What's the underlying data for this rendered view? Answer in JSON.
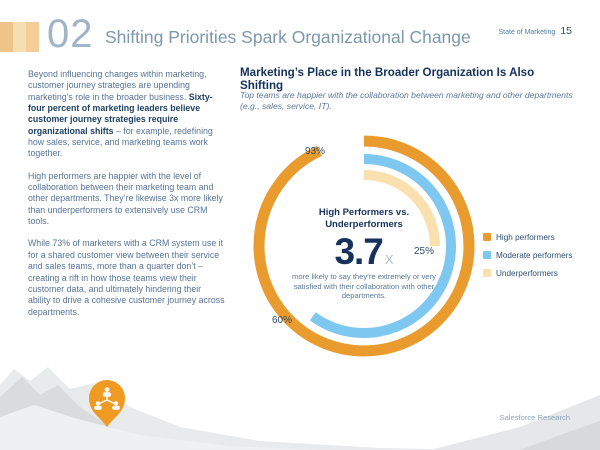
{
  "header": {
    "chapter_number": "02",
    "title": "Shifting Priorities Spark Organizational Change",
    "report_name": "State of Marketing",
    "page_number": "15"
  },
  "left_column": {
    "paragraph1_pre": "Beyond influencing changes within marketing, customer journey strategies are upending marketing’s role in the broader business. ",
    "paragraph1_bold": "Sixty-four percent of marketing leaders believe customer journey strategies require organizational shifts",
    "paragraph1_post": " – for example, redefining how sales, service, and marketing teams work together.",
    "paragraph2": "High performers are happier with the level of collaboration between their marketing team and other departments. They’re likewise 3x more likely than underperformers to extensively use CRM tools.",
    "paragraph3": "While 73% of marketers with a CRM system use it for a shared customer view between their service and sales teams, more than a quarter don’t – creating a rift in how those teams view their customer data, and ultimately hindering their ability to drive a cohesive customer journey across departments."
  },
  "chart": {
    "title": "Marketing’s Place in the Broader Organization Is Also Shifting",
    "subtitle": "Top teams are happier with the collaboration between marketing and other departments (e.g., sales, service, IT).",
    "center": {
      "heading_line1": "High Performers vs.",
      "heading_line2": "Underperformers",
      "stat_value": "3.7",
      "stat_suffix": "X",
      "stat_caption": "more likely to say they’re extremely or very satisfied with their collaboration with other departments."
    }
  },
  "chart_data": {
    "type": "pie",
    "variant": "concentric_donut_rings",
    "title": "Marketing’s Place in the Broader Organization Is Also Shifting",
    "unit": "%",
    "start_angle_deg": 0,
    "direction": "clockwise",
    "legend_position": "right",
    "series": [
      {
        "name": "High performers",
        "value": 93,
        "label": "93%",
        "color": "#ea9b2d"
      },
      {
        "name": "Moderate performers",
        "value": 60,
        "label": "60%",
        "color": "#7ec7f0"
      },
      {
        "name": "Underperformers",
        "value": 25,
        "label": "25%",
        "color": "#f9e0ae"
      }
    ]
  },
  "footer": {
    "source": "Salesforce Research"
  },
  "colors": {
    "accent_orange": "#ea9b2d",
    "sky_blue": "#7ec7f0",
    "cream": "#f9e0ae",
    "navy": "#16325c",
    "steel_blue": "#5a7897"
  }
}
